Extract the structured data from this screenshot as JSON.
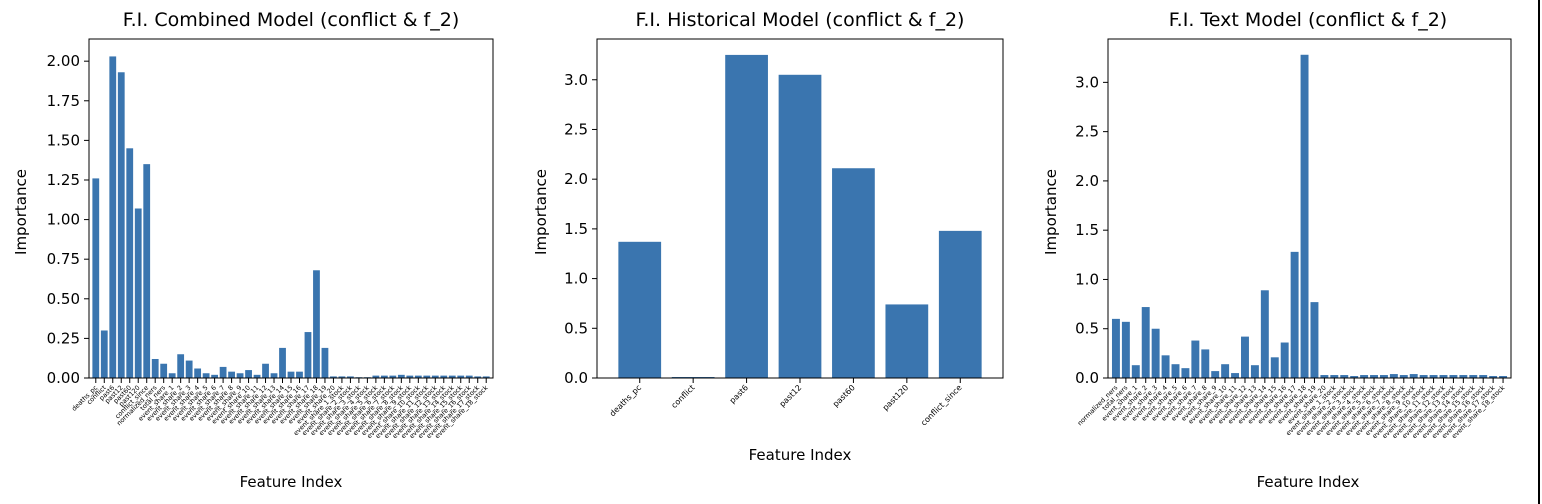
{
  "chart_data": [
    {
      "type": "bar",
      "title": "F.I. Combined Model (conflict & f_2)",
      "xlabel": "Feature Index",
      "ylabel": "Importance",
      "ylim": [
        0,
        2.14
      ],
      "yticks": [
        "0.00",
        "0.25",
        "0.50",
        "0.75",
        "1.00",
        "1.25",
        "1.50",
        "1.75",
        "2.00"
      ],
      "ytick_values": [
        0,
        0.25,
        0.5,
        0.75,
        1.0,
        1.25,
        1.5,
        1.75,
        2.0
      ],
      "grid": false,
      "bar_color": "#3a75af",
      "categories": [
        "deaths_pc",
        "conflict",
        "past6",
        "past12",
        "past60",
        "past120",
        "conflict_since",
        "normalized_ners",
        "total_ners",
        "event_share_1",
        "event_share_2",
        "event_share_3",
        "event_share_4",
        "event_share_5",
        "event_share_6",
        "event_share_7",
        "event_share_8",
        "event_share_9",
        "event_share_10",
        "event_share_11",
        "event_share_12",
        "event_share_13",
        "event_share_14",
        "event_share_15",
        "event_share_16",
        "event_share_17",
        "event_share_18",
        "event_share_19",
        "event_share_20",
        "event_share_1_stock",
        "event_share_2_stock",
        "event_share_3_stock",
        "event_share_4_stock",
        "event_share_5_stock",
        "event_share_6_stock",
        "event_share_7_stock",
        "event_share_8_stock",
        "event_share_9_stock",
        "event_share_10_stock",
        "event_share_11_stock",
        "event_share_12_stock",
        "event_share_13_stock",
        "event_share_14_stock",
        "event_share_15_stock",
        "event_share_16_stock",
        "event_share_17_stock",
        "event_share_18_stock"
      ],
      "values": [
        1.26,
        0.3,
        2.03,
        1.93,
        1.45,
        1.07,
        1.35,
        0.12,
        0.09,
        0.03,
        0.15,
        0.11,
        0.06,
        0.03,
        0.02,
        0.07,
        0.04,
        0.03,
        0.05,
        0.02,
        0.09,
        0.03,
        0.19,
        0.04,
        0.04,
        0.29,
        0.68,
        0.19,
        0.01,
        0.01,
        0.01,
        0.005,
        0.005,
        0.015,
        0.015,
        0.015,
        0.02,
        0.015,
        0.015,
        0.015,
        0.015,
        0.015,
        0.015,
        0.015,
        0.015,
        0.01,
        0.01
      ]
    },
    {
      "type": "bar",
      "title": "F.I. Historical Model (conflict & f_2)",
      "xlabel": "Feature Index",
      "ylabel": "Importance",
      "ylim": [
        0,
        3.41
      ],
      "yticks": [
        "0.0",
        "0.5",
        "1.0",
        "1.5",
        "2.0",
        "2.5",
        "3.0"
      ],
      "ytick_values": [
        0,
        0.5,
        1.0,
        1.5,
        2.0,
        2.5,
        3.0
      ],
      "grid": false,
      "bar_color": "#3a75af",
      "categories": [
        "deaths_pc",
        "conflict",
        "past6",
        "past12",
        "past60",
        "past120",
        "conflict_since"
      ],
      "values": [
        1.37,
        0.01,
        3.25,
        3.05,
        2.11,
        0.74,
        1.48
      ]
    },
    {
      "type": "bar",
      "title": "F.I. Text Model (conflict & f_2)",
      "xlabel": "Feature Index",
      "ylabel": "Importance",
      "ylim": [
        0,
        3.44
      ],
      "yticks": [
        "0.0",
        "0.5",
        "1.0",
        "1.5",
        "2.0",
        "2.5",
        "3.0"
      ],
      "ytick_values": [
        0,
        0.5,
        1.0,
        1.5,
        2.0,
        2.5,
        3.0
      ],
      "grid": false,
      "bar_color": "#3a75af",
      "categories": [
        "normalized_ners",
        "total_ners",
        "event_share_1",
        "event_share_2",
        "event_share_3",
        "event_share_4",
        "event_share_5",
        "event_share_6",
        "event_share_7",
        "event_share_8",
        "event_share_9",
        "event_share_10",
        "event_share_11",
        "event_share_12",
        "event_share_13",
        "event_share_14",
        "event_share_15",
        "event_share_16",
        "event_share_17",
        "event_share_18",
        "event_share_19",
        "event_share_20",
        "event_share_1_stock",
        "event_share_2_stock",
        "event_share_3_stock",
        "event_share_4_stock",
        "event_share_5_stock",
        "event_share_6_stock",
        "event_share_7_stock",
        "event_share_8_stock",
        "event_share_9_stock",
        "event_share_10_stock",
        "event_share_11_stock",
        "event_share_12_stock",
        "event_share_13_stock",
        "event_share_14_stock",
        "event_share_15_stock",
        "event_share_16_stock",
        "event_share_17_stock",
        "event_share_18_stock"
      ],
      "values": [
        0.6,
        0.57,
        0.13,
        0.72,
        0.5,
        0.23,
        0.14,
        0.1,
        0.38,
        0.29,
        0.07,
        0.14,
        0.05,
        0.42,
        0.13,
        0.89,
        0.21,
        0.36,
        1.28,
        3.28,
        0.77,
        0.03,
        0.03,
        0.03,
        0.02,
        0.03,
        0.03,
        0.03,
        0.04,
        0.03,
        0.04,
        0.03,
        0.03,
        0.03,
        0.03,
        0.03,
        0.03,
        0.03,
        0.02,
        0.02
      ]
    }
  ]
}
